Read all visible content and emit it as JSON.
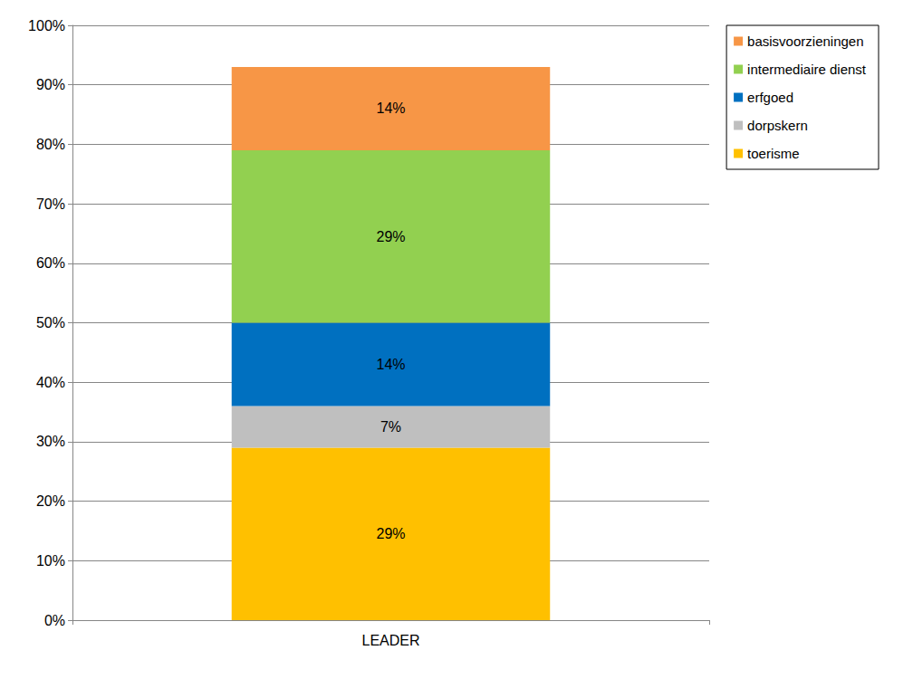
{
  "chart_data": {
    "type": "bar",
    "stacked": true,
    "categories": [
      "LEADER"
    ],
    "series": [
      {
        "name": "toerisme",
        "color": "#FFC000",
        "values": [
          29
        ],
        "value_labels": [
          "29%"
        ]
      },
      {
        "name": "dorpskern",
        "color": "#BFBFBF",
        "values": [
          7
        ],
        "value_labels": [
          "7%"
        ]
      },
      {
        "name": "erfgoed",
        "color": "#0070C0",
        "values": [
          14
        ],
        "value_labels": [
          "14%"
        ]
      },
      {
        "name": "intermediaire dienst",
        "color": "#92D050",
        "values": [
          29
        ],
        "value_labels": [
          "29%"
        ]
      },
      {
        "name": "basisvoorzieningen",
        "color": "#F79646",
        "values": [
          14
        ],
        "value_labels": [
          "14%"
        ]
      }
    ],
    "ylim": [
      0,
      100
    ],
    "yticks": [
      {
        "value": 0,
        "label": "0%"
      },
      {
        "value": 10,
        "label": "10%"
      },
      {
        "value": 20,
        "label": "20%"
      },
      {
        "value": 30,
        "label": "30%"
      },
      {
        "value": 40,
        "label": "40%"
      },
      {
        "value": 50,
        "label": "50%"
      },
      {
        "value": 60,
        "label": "60%"
      },
      {
        "value": 70,
        "label": "70%"
      },
      {
        "value": 80,
        "label": "80%"
      },
      {
        "value": 90,
        "label": "90%"
      },
      {
        "value": 100,
        "label": "100%"
      }
    ],
    "grid": true,
    "legend": "right",
    "data_labels": true
  }
}
